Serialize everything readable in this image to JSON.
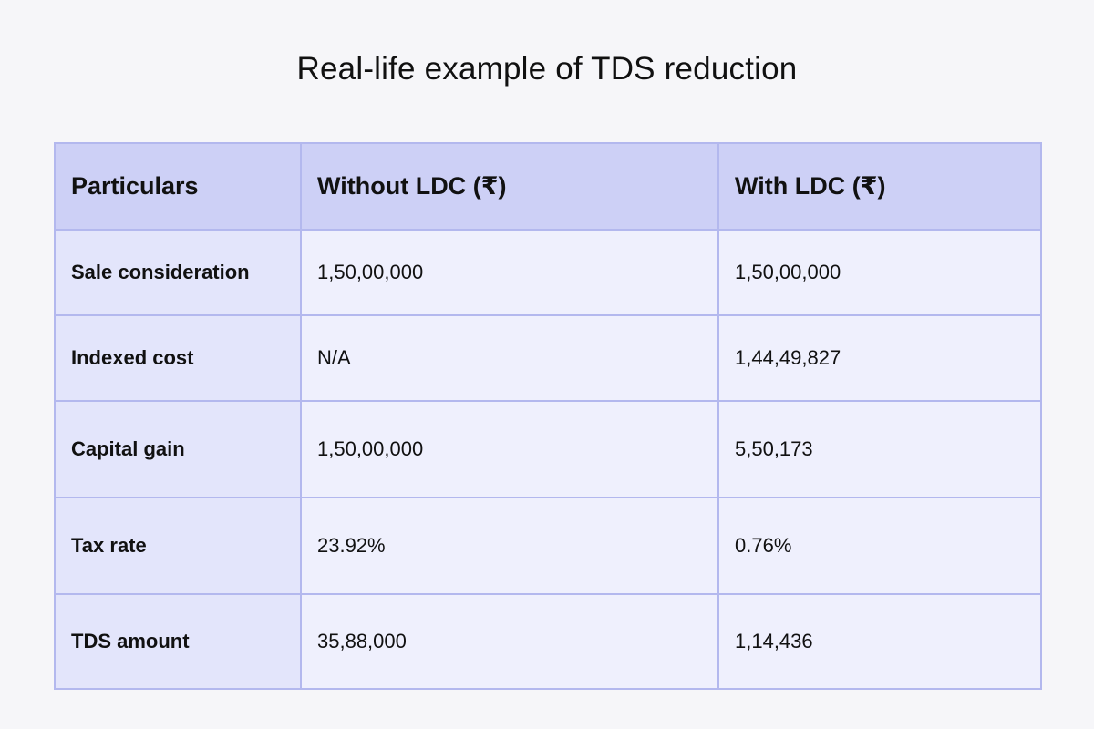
{
  "title": "Real-life example of TDS reduction",
  "table": {
    "headers": [
      "Particulars",
      "Without LDC (₹)",
      "With LDC (₹)"
    ],
    "rows": [
      {
        "particular": "Sale consideration",
        "without_ldc": "1,50,00,000",
        "with_ldc": "1,50,00,000"
      },
      {
        "particular": "Indexed cost",
        "without_ldc": "N/A",
        "with_ldc": "1,44,49,827"
      },
      {
        "particular": "Capital gain",
        "without_ldc": "1,50,00,000",
        "with_ldc": "5,50,173"
      },
      {
        "particular": "Tax rate",
        "without_ldc": "23.92%",
        "with_ldc": "0.76%"
      },
      {
        "particular": "TDS amount",
        "without_ldc": "35,88,000",
        "with_ldc": "1,14,436"
      }
    ]
  },
  "colors": {
    "background": "#f6f6f9",
    "header_bg": "#cdd0f6",
    "label_cell_bg": "#e3e5fb",
    "value_cell_bg": "#eff0fd",
    "border": "#b3b8ee"
  }
}
